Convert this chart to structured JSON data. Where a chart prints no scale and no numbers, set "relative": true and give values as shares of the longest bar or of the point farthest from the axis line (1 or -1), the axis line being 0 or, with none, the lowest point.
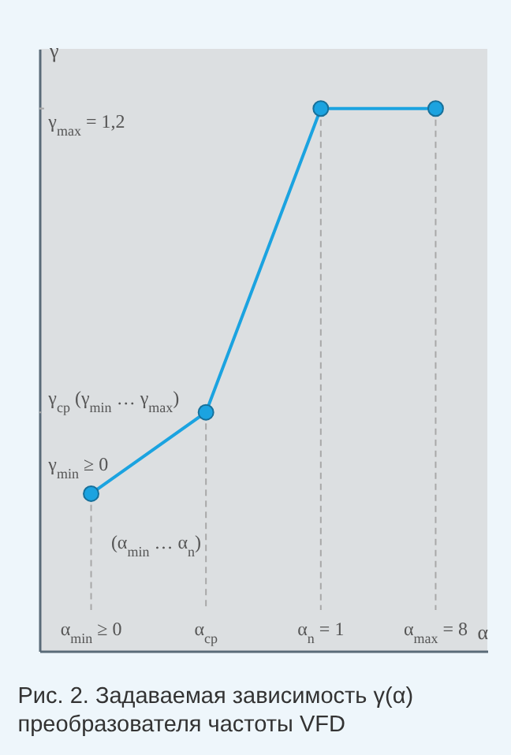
{
  "chart_data": {
    "type": "line",
    "title": "Рис. 2. Задаваемая зависимость γ(α) преобразователя частоты VFD",
    "xlabel": "α",
    "ylabel": "γ",
    "categories": [
      "α$_{min}$ ≥ 0",
      "α$_{cp}$",
      "α$_{n}$ = 1",
      "α$_{max}$ = 8"
    ],
    "series": [
      {
        "color": "#1ba3e0",
        "values": [
          0.29,
          0.44,
          1,
          1
        ]
      }
    ],
    "relative": true,
    "marker": "circle",
    "line_style": "solid",
    "annotations": [
      "γ$_{max}$ = 1,2",
      "γ$_{cp}$  (γ$_{min}$ … γ$_{max}$)",
      "γ$_{min}$ ≥ 0",
      "(α$_{min}$ … α$_{n}$)"
    ]
  }
}
